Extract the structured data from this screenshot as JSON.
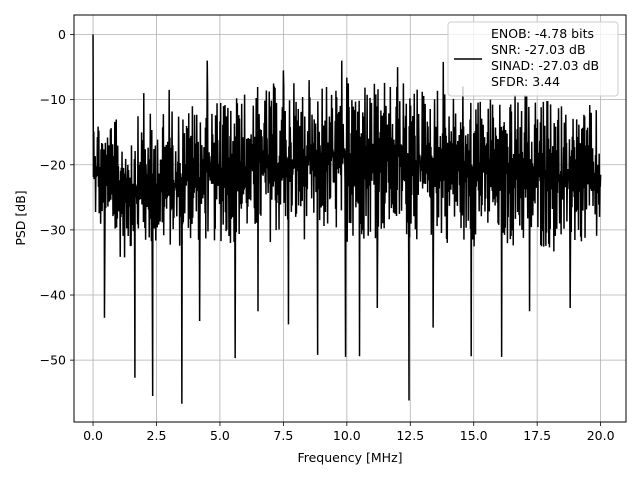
{
  "chart_data": {
    "type": "line",
    "title": "",
    "xlabel": "Frequency [MHz]",
    "ylabel": "PSD [dB]",
    "xlim": [
      -0.75,
      21.0
    ],
    "ylim": [
      -59.5,
      3.0
    ],
    "xticks": [
      0.0,
      2.5,
      5.0,
      7.5,
      10.0,
      12.5,
      15.0,
      17.5,
      20.0
    ],
    "xtick_labels": [
      "0.0",
      "2.5",
      "5.0",
      "7.5",
      "10.0",
      "12.5",
      "15.0",
      "17.5",
      "20.0"
    ],
    "yticks": [
      0,
      -10,
      -20,
      -30,
      -40,
      -50
    ],
    "ytick_labels": [
      "0",
      "−10",
      "−20",
      "−30",
      "−40",
      "−50"
    ],
    "grid": true,
    "legend_position": "top-right",
    "legend_lines": [
      "ENOB: -4.78 bits",
      "SNR: -27.03 dB",
      "SINAD: -27.03 dB",
      "SFDR: 3.44"
    ],
    "series": [
      {
        "color": "#000000",
        "x_range": [
          0.0,
          20.0
        ],
        "peak": {
          "x": 0.0,
          "y": 0.0
        },
        "envelope_note_free": true,
        "upper_envelope": [
          {
            "x": 0.0,
            "y": -10.0
          },
          {
            "x": 1.0,
            "y": -13.0
          },
          {
            "x": 2.5,
            "y": -11.5
          },
          {
            "x": 4.0,
            "y": -9.5
          },
          {
            "x": 6.0,
            "y": -8.0
          },
          {
            "x": 8.0,
            "y": -6.5
          },
          {
            "x": 10.0,
            "y": -6.0
          },
          {
            "x": 12.0,
            "y": -6.5
          },
          {
            "x": 14.0,
            "y": -7.5
          },
          {
            "x": 16.0,
            "y": -8.5
          },
          {
            "x": 18.0,
            "y": -9.5
          },
          {
            "x": 20.0,
            "y": -11.0
          }
        ],
        "lower_envelope": [
          {
            "x": 0.0,
            "y": -30.0
          },
          {
            "x": 1.0,
            "y": -35.0
          },
          {
            "x": 2.5,
            "y": -34.0
          },
          {
            "x": 4.0,
            "y": -33.0
          },
          {
            "x": 6.0,
            "y": -32.5
          },
          {
            "x": 8.0,
            "y": -32.0
          },
          {
            "x": 10.0,
            "y": -32.0
          },
          {
            "x": 12.0,
            "y": -32.0
          },
          {
            "x": 14.0,
            "y": -32.5
          },
          {
            "x": 16.0,
            "y": -33.0
          },
          {
            "x": 18.0,
            "y": -34.0
          },
          {
            "x": 20.0,
            "y": -34.0
          }
        ],
        "spikes_up": [
          {
            "x": 4.5,
            "y": -4.0
          },
          {
            "x": 9.8,
            "y": -4.0
          },
          {
            "x": 13.8,
            "y": -4.2
          },
          {
            "x": 12.0,
            "y": -5.0
          },
          {
            "x": 7.5,
            "y": -5.5
          },
          {
            "x": 2.0,
            "y": -9.0
          },
          {
            "x": 3.0,
            "y": -8.5
          }
        ],
        "spikes_down": [
          {
            "x": 0.45,
            "y": -43.5
          },
          {
            "x": 1.65,
            "y": -52.7
          },
          {
            "x": 2.35,
            "y": -55.5
          },
          {
            "x": 3.5,
            "y": -56.7
          },
          {
            "x": 5.6,
            "y": -49.7
          },
          {
            "x": 8.85,
            "y": -49.2
          },
          {
            "x": 9.95,
            "y": -49.5
          },
          {
            "x": 10.5,
            "y": -49.4
          },
          {
            "x": 12.45,
            "y": -56.2
          },
          {
            "x": 14.9,
            "y": -49.4
          },
          {
            "x": 16.1,
            "y": -49.5
          },
          {
            "x": 4.2,
            "y": -44.0
          },
          {
            "x": 7.7,
            "y": -44.5
          },
          {
            "x": 11.2,
            "y": -42.0
          },
          {
            "x": 17.2,
            "y": -42.5
          },
          {
            "x": 18.8,
            "y": -42.0
          },
          {
            "x": 6.5,
            "y": -42.5
          },
          {
            "x": 13.4,
            "y": -45.0
          }
        ]
      }
    ]
  }
}
